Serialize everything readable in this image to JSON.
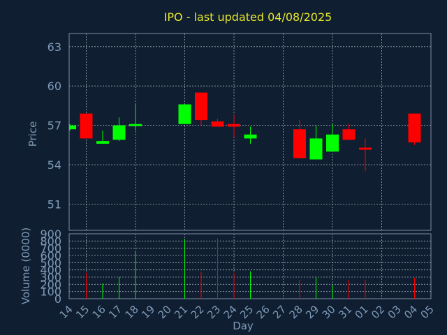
{
  "chart_data": {
    "type": "candlestick",
    "title": "IPO - last updated 04/08/2025",
    "xlabel": "Day",
    "price_panel": {
      "ylabel": "Price",
      "ylim": [
        49,
        64
      ],
      "yticks": [
        51,
        54,
        57,
        60,
        63
      ],
      "grid": true
    },
    "volume_panel": {
      "ylabel": "Volume (0000)",
      "ylim": [
        0,
        900
      ],
      "yticks": [
        0,
        100,
        200,
        300,
        400,
        500,
        600,
        700,
        800,
        900
      ],
      "grid": true
    },
    "x_ticks": [
      "14",
      "15",
      "16",
      "17",
      "18",
      "19",
      "20",
      "21",
      "22",
      "23",
      "24",
      "25",
      "26",
      "27",
      "28",
      "29",
      "30",
      "31",
      "01",
      "02",
      "03",
      "04",
      "05"
    ],
    "candles": [
      {
        "day": "14",
        "open": 56.7,
        "close": 57.0,
        "high": 57.1,
        "low": 56.6,
        "volume": 0
      },
      {
        "day": "15",
        "open": 57.9,
        "close": 56.0,
        "high": 57.9,
        "low": 56.0,
        "volume": 360
      },
      {
        "day": "16",
        "open": 55.6,
        "close": 55.8,
        "high": 56.6,
        "low": 55.6,
        "volume": 210
      },
      {
        "day": "17",
        "open": 55.9,
        "close": 57.0,
        "high": 57.6,
        "low": 55.8,
        "volume": 300
      },
      {
        "day": "18",
        "open": 57.0,
        "close": 57.1,
        "high": 58.6,
        "low": 56.6,
        "volume": 650
      },
      {
        "day": "21",
        "open": 57.1,
        "close": 58.6,
        "high": 58.6,
        "low": 57.1,
        "volume": 830
      },
      {
        "day": "22",
        "open": 59.5,
        "close": 57.4,
        "high": 59.5,
        "low": 57.0,
        "volume": 370
      },
      {
        "day": "23",
        "open": 57.3,
        "close": 56.9,
        "high": 57.5,
        "low": 56.9,
        "volume": 840
      },
      {
        "day": "24",
        "open": 57.1,
        "close": 56.9,
        "high": 57.8,
        "low": 56.1,
        "volume": 360
      },
      {
        "day": "25",
        "open": 56.0,
        "close": 56.3,
        "high": 56.9,
        "low": 55.6,
        "volume": 380
      },
      {
        "day": "28",
        "open": 56.7,
        "close": 54.5,
        "high": 57.4,
        "low": 54.5,
        "volume": 260
      },
      {
        "day": "29",
        "open": 54.4,
        "close": 56.0,
        "high": 57.0,
        "low": 54.4,
        "volume": 300
      },
      {
        "day": "30",
        "open": 55.0,
        "close": 56.3,
        "high": 57.1,
        "low": 55.0,
        "volume": 190
      },
      {
        "day": "31",
        "open": 56.7,
        "close": 55.9,
        "high": 57.1,
        "low": 55.9,
        "volume": 260
      },
      {
        "day": "01",
        "open": 55.3,
        "close": 55.2,
        "high": 56.0,
        "low": 53.5,
        "volume": 260
      },
      {
        "day": "04",
        "open": 57.9,
        "close": 55.7,
        "high": 57.9,
        "low": 55.5,
        "volume": 290
      }
    ],
    "colors": {
      "background": "#0f1e30",
      "axes": "#7f8fa6",
      "grid": "#c8d0dc",
      "title": "#e9e92a",
      "tick_labels": "#7f9bb8",
      "up": "#00ff00",
      "down": "#ff0000"
    }
  }
}
